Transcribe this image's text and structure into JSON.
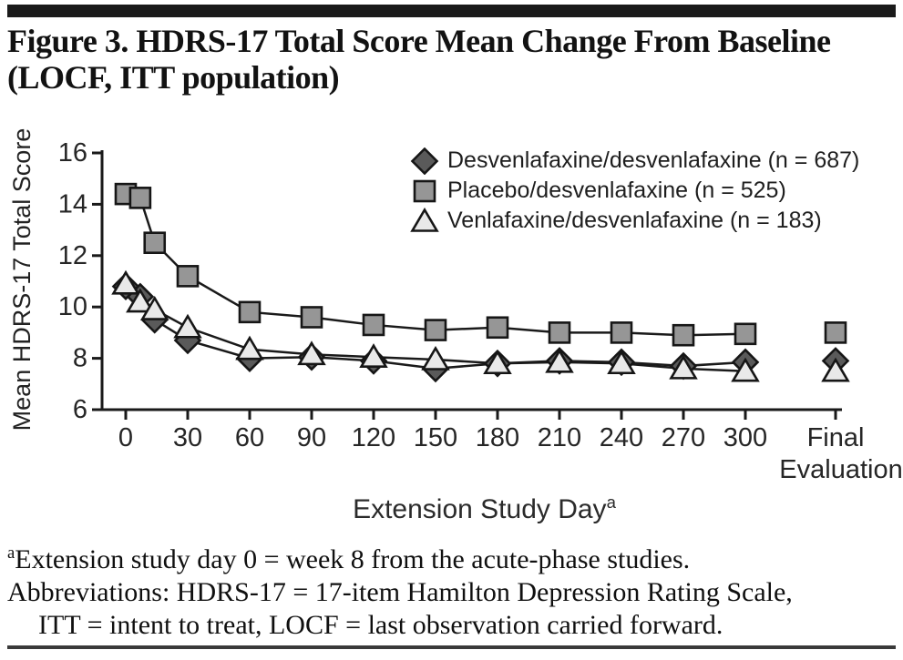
{
  "page": {
    "title_line1": "Figure 3. HDRS-17 Total Score Mean Change From Baseline",
    "title_line2": "(LOCF, ITT population)",
    "footnotes": {
      "marker": "a",
      "line1": "Extension study day 0 = week 8 from the acute-phase studies.",
      "line2": "Abbreviations: HDRS-17 = 17-item Hamilton Depression Rating Scale,",
      "line3": "ITT = intent to treat, LOCF = last observation carried forward."
    }
  },
  "chart_data": {
    "type": "line",
    "xlabel": "Extension Study Day",
    "xlabel_superscript": "a",
    "ylabel": "Mean HDRS-17 Total Score",
    "ylim": [
      6,
      16
    ],
    "yticks": [
      16,
      14,
      12,
      10,
      8,
      6
    ],
    "xticks": [
      0,
      30,
      60,
      90,
      120,
      150,
      180,
      210,
      240,
      270,
      300
    ],
    "final_tick_label": [
      "Final",
      "Evaluation"
    ],
    "x_days": [
      0,
      7,
      14,
      30,
      60,
      90,
      120,
      150,
      180,
      210,
      240,
      270,
      300
    ],
    "grid": false,
    "legend_position": "top-right",
    "line_color": "#1a1a1a",
    "draw_order": [
      1,
      0,
      2
    ],
    "series": [
      {
        "name": "Desvenlafaxine/desvenlafaxine",
        "legend_label": "Desvenlafaxine/desvenlafaxine (n = 687)",
        "marker": "diamond",
        "fill": "#5a5a5a",
        "values": [
          10.8,
          10.4,
          9.5,
          8.7,
          8.0,
          8.05,
          7.9,
          7.6,
          7.8,
          7.9,
          7.85,
          7.7,
          7.85
        ],
        "final_value": 7.9
      },
      {
        "name": "Placebo/desvenlafaxine",
        "legend_label": "Placebo/desvenlafaxine (n = 525)",
        "marker": "square",
        "fill": "#969696",
        "values": [
          14.4,
          14.25,
          12.5,
          11.2,
          9.8,
          9.6,
          9.3,
          9.1,
          9.2,
          9.0,
          9.0,
          8.9,
          8.95
        ],
        "final_value": 9.0
      },
      {
        "name": "Venlafaxine/desvenlafaxine",
        "legend_label": "Venlafaxine/desvenlafaxine (n = 183)",
        "marker": "triangle",
        "fill": "#e9e9e9",
        "values": [
          10.9,
          10.2,
          9.9,
          9.2,
          8.35,
          8.15,
          8.05,
          7.95,
          7.8,
          7.85,
          7.8,
          7.6,
          7.5
        ],
        "final_value": 7.5
      }
    ]
  }
}
